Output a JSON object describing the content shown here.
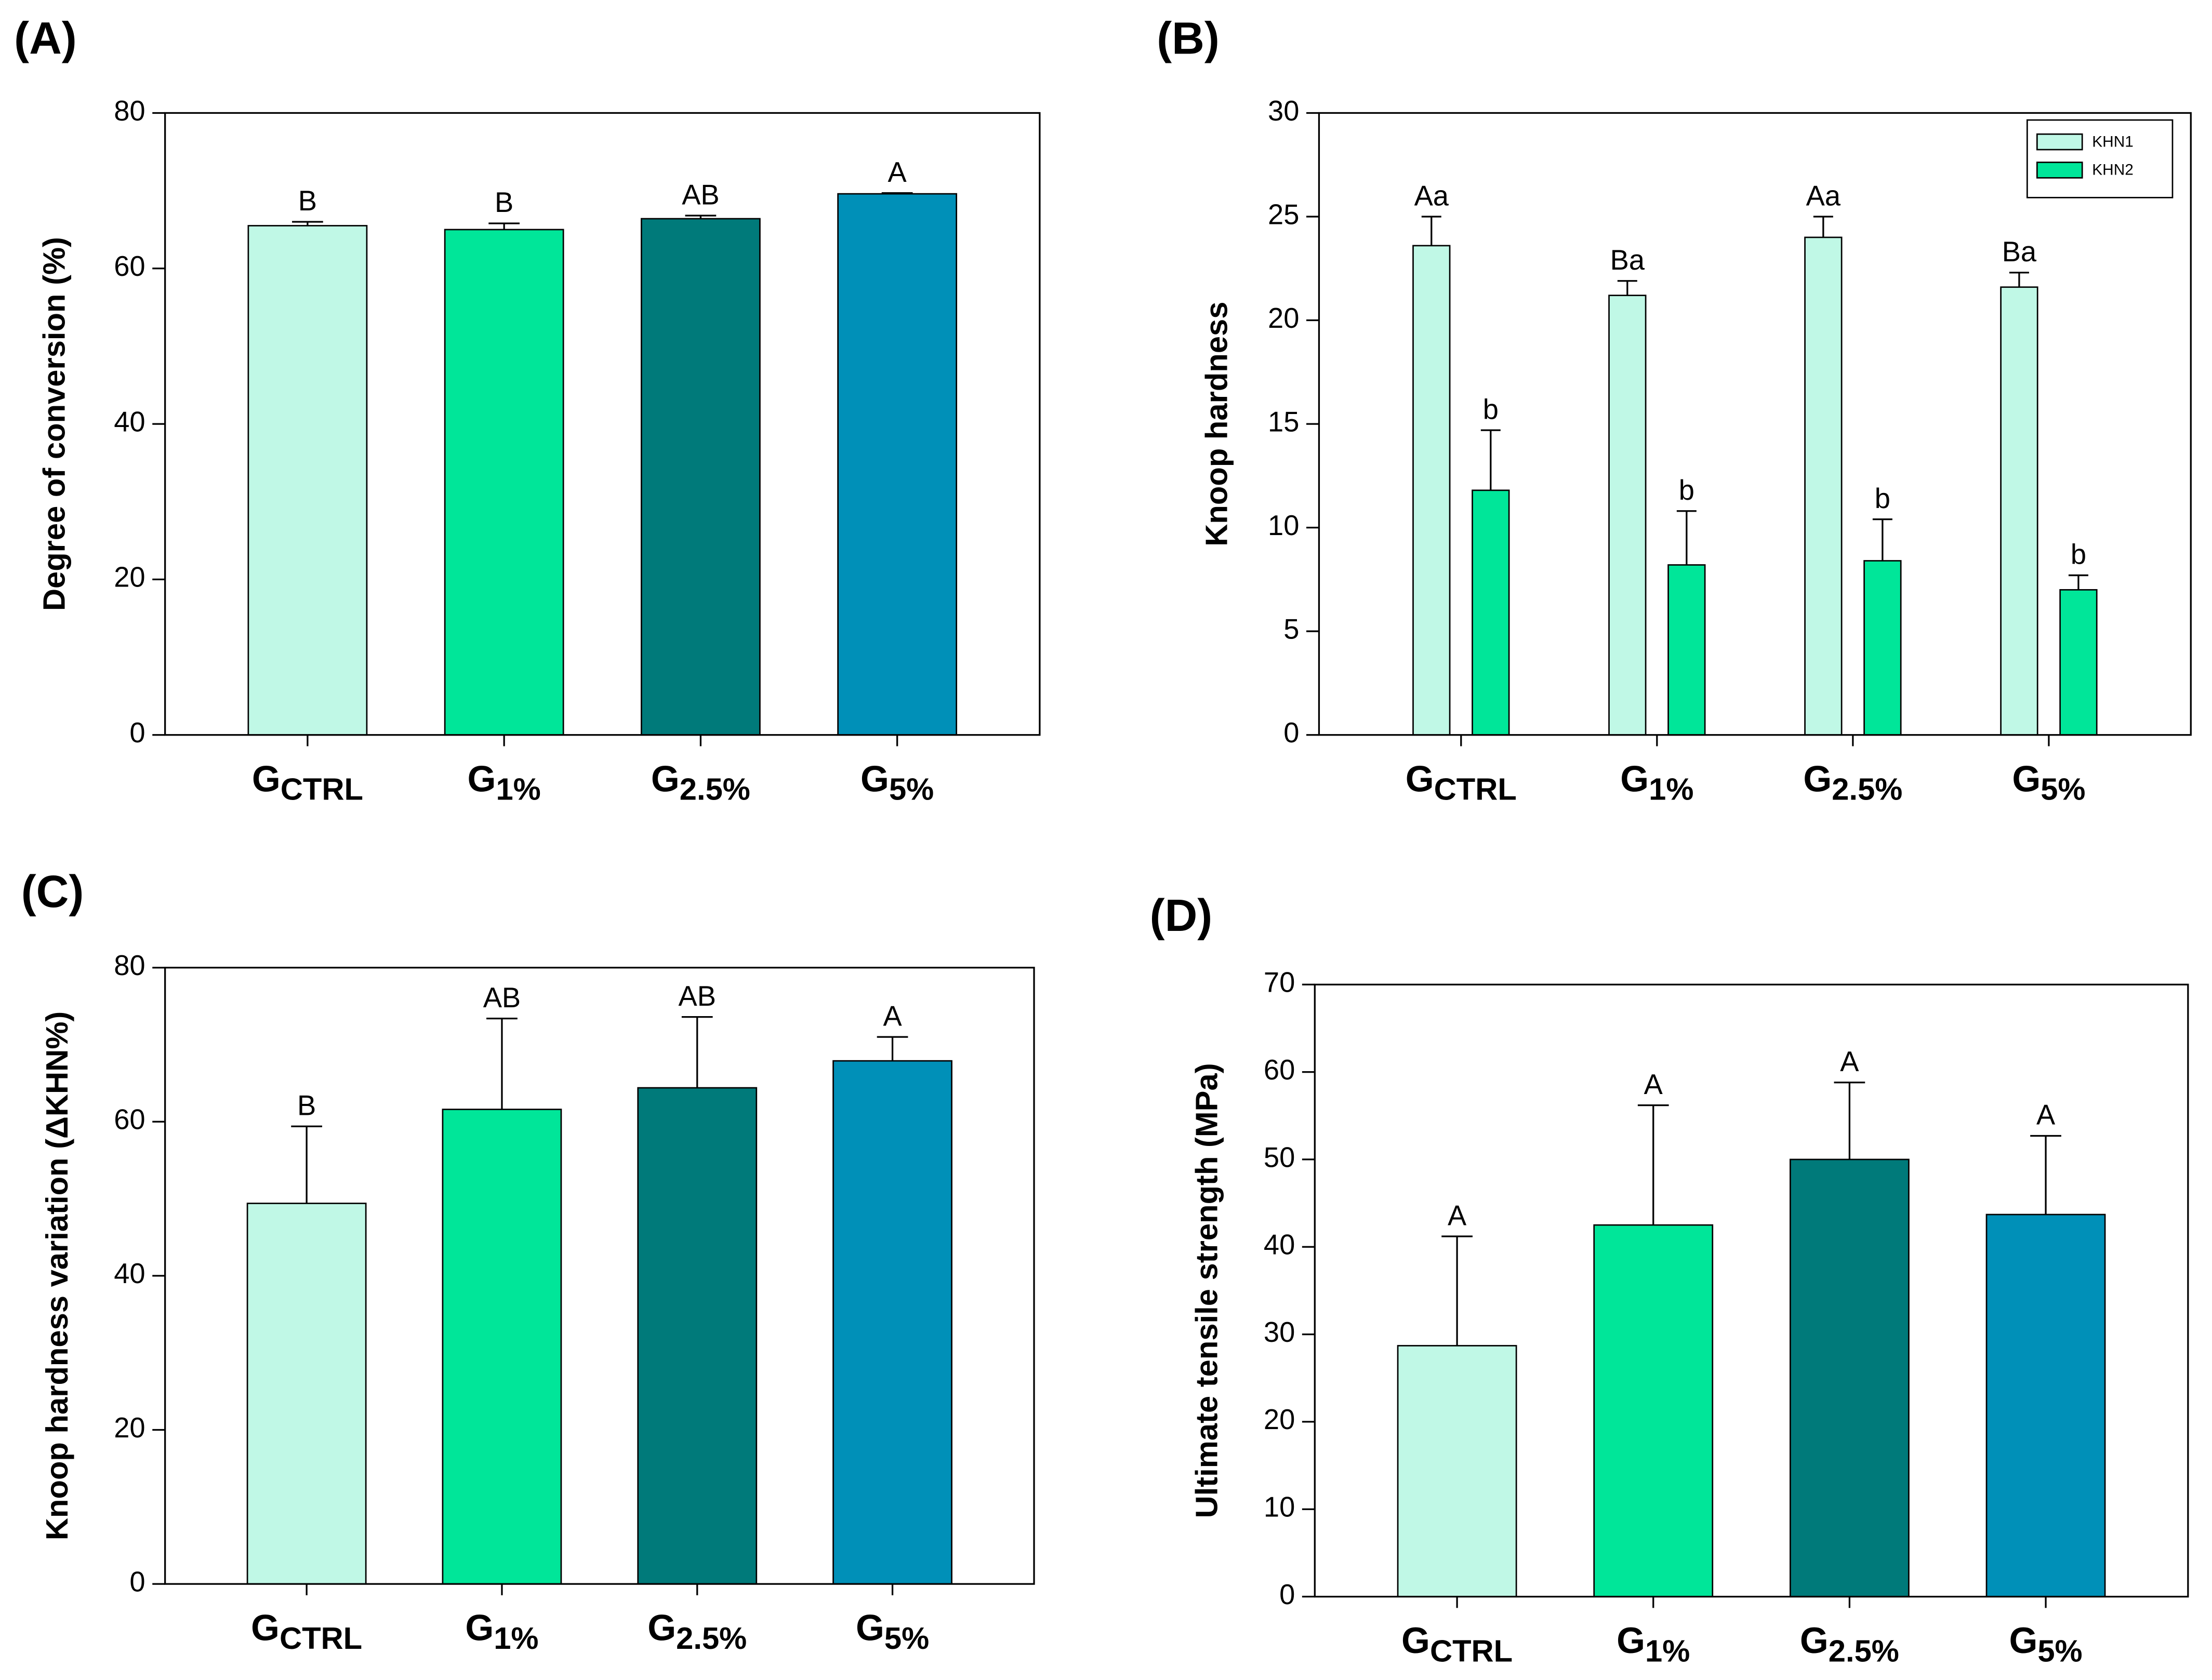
{
  "chart_data": [
    {
      "type": "bar",
      "panel_label": "(A)",
      "ylabel": "Degree of conversion (%)",
      "categories": [
        [
          "G",
          "CTRL"
        ],
        [
          "G",
          "1%"
        ],
        [
          "G",
          "2.5%"
        ],
        [
          "G",
          "5%"
        ]
      ],
      "series": [
        {
          "colors": [
            "#c0f8e6",
            "#00e699",
            "#007a7a",
            "#0090b8"
          ],
          "values": [
            65.5,
            65.0,
            66.4,
            69.6
          ],
          "errors": [
            0.5,
            0.8,
            0.4,
            0.1
          ],
          "letters": [
            "B",
            "B",
            "AB",
            "A"
          ]
        }
      ],
      "ylim": [
        0,
        80
      ],
      "yticks": [
        0,
        20,
        40,
        60,
        80
      ],
      "grid": false
    },
    {
      "type": "bar",
      "panel_label": "(B)",
      "ylabel": "Knoop hardness",
      "categories": [
        [
          "G",
          "CTRL"
        ],
        [
          "G",
          "1%"
        ],
        [
          "G",
          "2.5%"
        ],
        [
          "G",
          "5%"
        ]
      ],
      "series": [
        {
          "name": "KHN1",
          "color": "#c0f8e6",
          "values": [
            23.6,
            21.2,
            24.0,
            21.6
          ],
          "errors": [
            1.4,
            0.7,
            1.0,
            0.7
          ],
          "letters": [
            "Aa",
            "Ba",
            "Aa",
            "Ba"
          ]
        },
        {
          "name": "KHN2",
          "color": "#00e699",
          "values": [
            11.8,
            8.2,
            8.4,
            7.0
          ],
          "errors": [
            2.9,
            2.6,
            2.0,
            0.7
          ],
          "letters": [
            "b",
            "b",
            "b",
            "b"
          ]
        }
      ],
      "ylim": [
        0,
        30
      ],
      "yticks": [
        0,
        5,
        10,
        15,
        20,
        25,
        30
      ],
      "grid": false,
      "legend": "upper right"
    },
    {
      "type": "bar",
      "panel_label": "(C)",
      "ylabel": "Knoop hardness variation (ΔKHN%)",
      "categories": [
        [
          "G",
          "CTRL"
        ],
        [
          "G",
          "1%"
        ],
        [
          "G",
          "2.5%"
        ],
        [
          "G",
          "5%"
        ]
      ],
      "series": [
        {
          "colors": [
            "#c0f8e6",
            "#00e699",
            "#007a7a",
            "#0090b8"
          ],
          "values": [
            49.4,
            61.6,
            64.4,
            67.9
          ],
          "errors": [
            10.0,
            11.8,
            9.2,
            3.1
          ],
          "letters": [
            "B",
            "AB",
            "AB",
            "A"
          ]
        }
      ],
      "ylim": [
        0,
        80
      ],
      "yticks": [
        0,
        20,
        40,
        60,
        80
      ],
      "grid": false
    },
    {
      "type": "bar",
      "panel_label": "(D)",
      "ylabel": "Ultimate tensile strength  (MPa)",
      "categories": [
        [
          "G",
          "CTRL"
        ],
        [
          "G",
          "1%"
        ],
        [
          "G",
          "2.5%"
        ],
        [
          "G",
          "5%"
        ]
      ],
      "series": [
        {
          "colors": [
            "#c0f8e6",
            "#00e699",
            "#007a7a",
            "#0090b8"
          ],
          "values": [
            28.7,
            42.5,
            50.0,
            43.7
          ],
          "errors": [
            12.5,
            13.7,
            8.8,
            9.0
          ],
          "letters": [
            "A",
            "A",
            "A",
            "A"
          ]
        }
      ],
      "ylim": [
        0,
        70
      ],
      "yticks": [
        0,
        10,
        20,
        30,
        40,
        50,
        60,
        70
      ],
      "grid": false
    }
  ]
}
